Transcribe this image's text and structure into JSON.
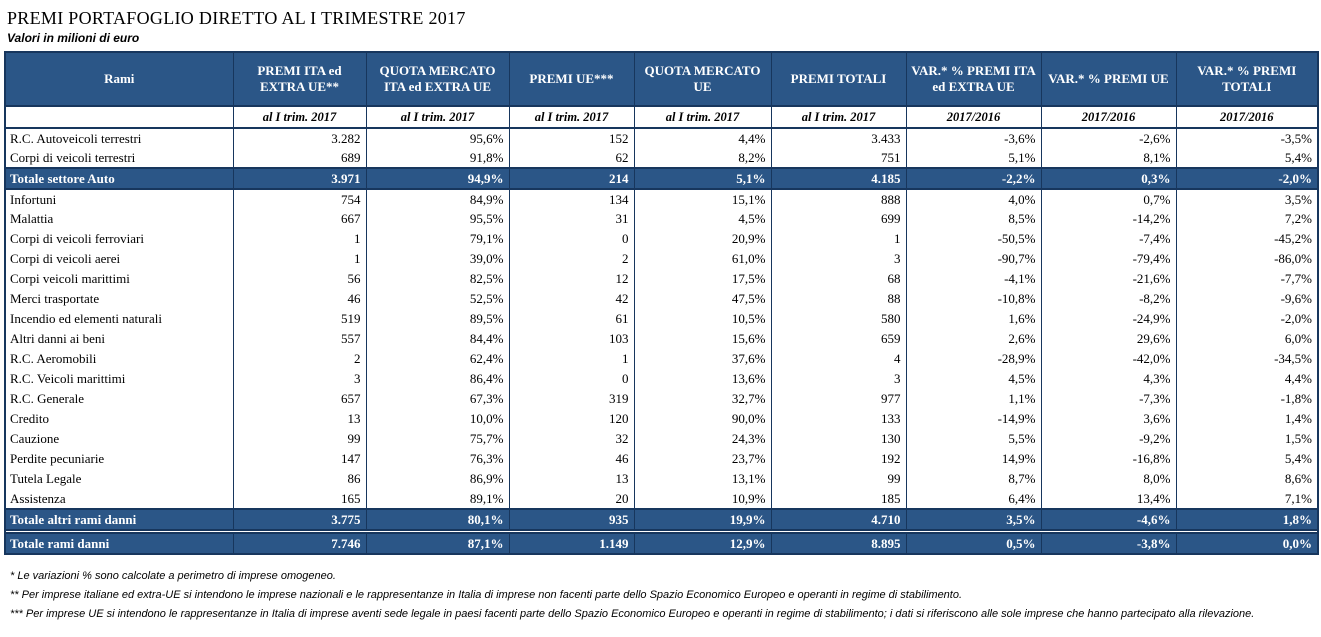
{
  "page": {
    "title": "PREMI PORTAFOGLIO DIRETTO AL I TRIMESTRE 2017",
    "subtitle": "Valori in milioni di euro"
  },
  "colors": {
    "header_bg": "#2B5687",
    "total_row_bg": "#2B5687",
    "border": "#17365D",
    "header_text": "#FFFFFF"
  },
  "table": {
    "row_header_label": "Rami",
    "columns": [
      {
        "label": "PREMI ITA ed EXTRA UE**",
        "sublabel": "al I trim. 2017"
      },
      {
        "label": "QUOTA MERCATO ITA ed EXTRA UE",
        "sublabel": "al I trim. 2017"
      },
      {
        "label": "PREMI UE***",
        "sublabel": "al I trim. 2017"
      },
      {
        "label": "QUOTA MERCATO UE",
        "sublabel": "al I trim. 2017"
      },
      {
        "label": "PREMI TOTALI",
        "sublabel": "al I trim. 2017"
      },
      {
        "label": "VAR.* % PREMI ITA ed EXTRA UE",
        "sublabel": "2017/2016"
      },
      {
        "label": "VAR.* % PREMI UE",
        "sublabel": "2017/2016"
      },
      {
        "label": "VAR.* % PREMI TOTALI",
        "sublabel": "2017/2016"
      }
    ],
    "rows": [
      {
        "label": "R.C. Autoveicoli terrestri",
        "type": "data",
        "values": [
          "3.282",
          "95,6%",
          "152",
          "4,4%",
          "3.433",
          "-3,6%",
          "-2,6%",
          "-3,5%"
        ]
      },
      {
        "label": "Corpi di veicoli terrestri",
        "type": "data",
        "values": [
          "689",
          "91,8%",
          "62",
          "8,2%",
          "751",
          "5,1%",
          "8,1%",
          "5,4%"
        ]
      },
      {
        "label": "Totale settore Auto",
        "type": "total",
        "values": [
          "3.971",
          "94,9%",
          "214",
          "5,1%",
          "4.185",
          "-2,2%",
          "0,3%",
          "-2,0%"
        ]
      },
      {
        "label": "Infortuni",
        "type": "data",
        "values": [
          "754",
          "84,9%",
          "134",
          "15,1%",
          "888",
          "4,0%",
          "0,7%",
          "3,5%"
        ]
      },
      {
        "label": "Malattia",
        "type": "data",
        "values": [
          "667",
          "95,5%",
          "31",
          "4,5%",
          "699",
          "8,5%",
          "-14,2%",
          "7,2%"
        ]
      },
      {
        "label": "Corpi di veicoli ferroviari",
        "type": "data",
        "values": [
          "1",
          "79,1%",
          "0",
          "20,9%",
          "1",
          "-50,5%",
          "-7,4%",
          "-45,2%"
        ]
      },
      {
        "label": "Corpi di veicoli aerei",
        "type": "data",
        "values": [
          "1",
          "39,0%",
          "2",
          "61,0%",
          "3",
          "-90,7%",
          "-79,4%",
          "-86,0%"
        ]
      },
      {
        "label": "Corpi veicoli marittimi",
        "type": "data",
        "values": [
          "56",
          "82,5%",
          "12",
          "17,5%",
          "68",
          "-4,1%",
          "-21,6%",
          "-7,7%"
        ]
      },
      {
        "label": "Merci trasportate",
        "type": "data",
        "values": [
          "46",
          "52,5%",
          "42",
          "47,5%",
          "88",
          "-10,8%",
          "-8,2%",
          "-9,6%"
        ]
      },
      {
        "label": "Incendio ed elementi naturali",
        "type": "data",
        "values": [
          "519",
          "89,5%",
          "61",
          "10,5%",
          "580",
          "1,6%",
          "-24,9%",
          "-2,0%"
        ]
      },
      {
        "label": "Altri danni ai beni",
        "type": "data",
        "values": [
          "557",
          "84,4%",
          "103",
          "15,6%",
          "659",
          "2,6%",
          "29,6%",
          "6,0%"
        ]
      },
      {
        "label": "R.C. Aeromobili",
        "type": "data",
        "values": [
          "2",
          "62,4%",
          "1",
          "37,6%",
          "4",
          "-28,9%",
          "-42,0%",
          "-34,5%"
        ]
      },
      {
        "label": "R.C. Veicoli marittimi",
        "type": "data",
        "values": [
          "3",
          "86,4%",
          "0",
          "13,6%",
          "3",
          "4,5%",
          "4,3%",
          "4,4%"
        ]
      },
      {
        "label": "R.C. Generale",
        "type": "data",
        "values": [
          "657",
          "67,3%",
          "319",
          "32,7%",
          "977",
          "1,1%",
          "-7,3%",
          "-1,8%"
        ]
      },
      {
        "label": "Credito",
        "type": "data",
        "values": [
          "13",
          "10,0%",
          "120",
          "90,0%",
          "133",
          "-14,9%",
          "3,6%",
          "1,4%"
        ]
      },
      {
        "label": "Cauzione",
        "type": "data",
        "values": [
          "99",
          "75,7%",
          "32",
          "24,3%",
          "130",
          "5,5%",
          "-9,2%",
          "1,5%"
        ]
      },
      {
        "label": "Perdite pecuniarie",
        "type": "data",
        "values": [
          "147",
          "76,3%",
          "46",
          "23,7%",
          "192",
          "14,9%",
          "-16,8%",
          "5,4%"
        ]
      },
      {
        "label": "Tutela Legale",
        "type": "data",
        "values": [
          "86",
          "86,9%",
          "13",
          "13,1%",
          "99",
          "8,7%",
          "8,0%",
          "8,6%"
        ]
      },
      {
        "label": "Assistenza",
        "type": "data",
        "values": [
          "165",
          "89,1%",
          "20",
          "10,9%",
          "185",
          "6,4%",
          "13,4%",
          "7,1%"
        ]
      },
      {
        "label": "Totale altri rami danni",
        "type": "total",
        "values": [
          "3.775",
          "80,1%",
          "935",
          "19,9%",
          "4.710",
          "3,5%",
          "-4,6%",
          "1,8%"
        ]
      },
      {
        "label": "Totale rami danni",
        "type": "total",
        "gap_before": true,
        "values": [
          "7.746",
          "87,1%",
          "1.149",
          "12,9%",
          "8.895",
          "0,5%",
          "-3,8%",
          "0,0%"
        ]
      }
    ]
  },
  "footnotes": [
    "* Le variazioni % sono calcolate a perimetro di imprese omogeneo.",
    "** Per imprese italiane ed extra-UE si intendono le imprese nazionali e le rappresentanze in Italia di imprese non facenti parte dello Spazio Economico Europeo e operanti in regime di stabilimento.",
    "*** Per imprese UE si intendono le rappresentanze in Italia di imprese aventi sede legale in paesi facenti parte dello Spazio Economico Europeo e operanti in regime di stabilimento; i dati si riferiscono alle sole imprese che hanno partecipato alla rilevazione."
  ]
}
